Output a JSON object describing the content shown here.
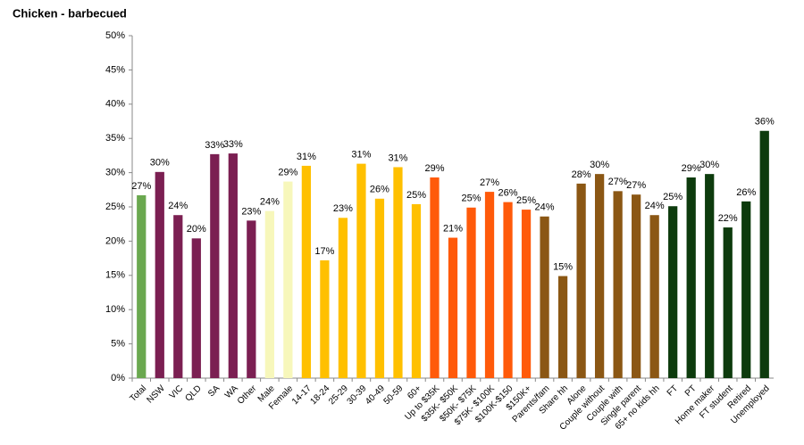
{
  "chart_data": {
    "type": "bar",
    "title": "Chicken - barbecued",
    "categories": [
      "Total",
      "NSW",
      "VIC",
      "QLD",
      "SA",
      "WA",
      "Other",
      "Male",
      "Female",
      "14-17",
      "18-24",
      "25-29",
      "30-39",
      "40-49",
      "50-59",
      "60+",
      "Up to $35K",
      "$35K- $50K",
      "$50K- $75K",
      "$75K- $100K",
      "$100K-$150",
      "$150K+",
      "Parents/fam",
      "Share hh",
      "Alone",
      "Couple without",
      "Couple with",
      "Single parent",
      "65+ no kids hh",
      "FT",
      "PT",
      "Home maker",
      "FT student",
      "Retired",
      "Unemployed"
    ],
    "values": [
      26.7,
      30.1,
      23.8,
      20.4,
      32.7,
      32.8,
      23.0,
      24.4,
      28.7,
      31.0,
      17.2,
      23.4,
      31.3,
      26.2,
      30.8,
      25.4,
      29.3,
      20.5,
      24.9,
      27.2,
      25.7,
      24.6,
      23.6,
      14.9,
      28.4,
      29.8,
      27.3,
      26.8,
      23.8,
      25.1,
      29.3,
      29.8,
      22.0,
      25.8,
      36.1
    ],
    "value_labels": [
      "27%",
      "30%",
      "24%",
      "20%",
      "33%",
      "33%",
      "23%",
      "24%",
      "29%",
      "31%",
      "17%",
      "23%",
      "31%",
      "26%",
      "31%",
      "25%",
      "29%",
      "21%",
      "25%",
      "27%",
      "26%",
      "25%",
      "24%",
      "15%",
      "28%",
      "30%",
      "27%",
      "27%",
      "24%",
      "25%",
      "29%",
      "30%",
      "22%",
      "26%",
      "36%"
    ],
    "colors": [
      "#6aa84f",
      "#7b1f52",
      "#7b1f52",
      "#7b1f52",
      "#7b1f52",
      "#7b1f52",
      "#7b1f52",
      "#f7f7bb",
      "#f7f7bb",
      "#ffc000",
      "#ffc000",
      "#ffc000",
      "#ffc000",
      "#ffc000",
      "#ffc000",
      "#ffc000",
      "#ff5a0a",
      "#ff5a0a",
      "#ff5a0a",
      "#ff5a0a",
      "#ff5a0a",
      "#ff5a0a",
      "#8b5714",
      "#8b5714",
      "#8b5714",
      "#8b5714",
      "#8b5714",
      "#8b5714",
      "#8b5714",
      "#0d3b0d",
      "#0d3b0d",
      "#0d3b0d",
      "#0d3b0d",
      "#0d3b0d",
      "#0d3b0d"
    ],
    "ylim": [
      0,
      50
    ],
    "yticks": [
      {
        "value": 0,
        "label": "0%"
      },
      {
        "value": 5,
        "label": "5%"
      },
      {
        "value": 10,
        "label": "10%"
      },
      {
        "value": 15,
        "label": "15%"
      },
      {
        "value": 20,
        "label": "20%"
      },
      {
        "value": 25,
        "label": "25%"
      },
      {
        "value": 30,
        "label": "30%"
      },
      {
        "value": 35,
        "label": "35%"
      },
      {
        "value": 40,
        "label": "40%"
      },
      {
        "value": 45,
        "label": "45%"
      },
      {
        "value": 50,
        "label": "50%"
      }
    ],
    "grid": false
  }
}
